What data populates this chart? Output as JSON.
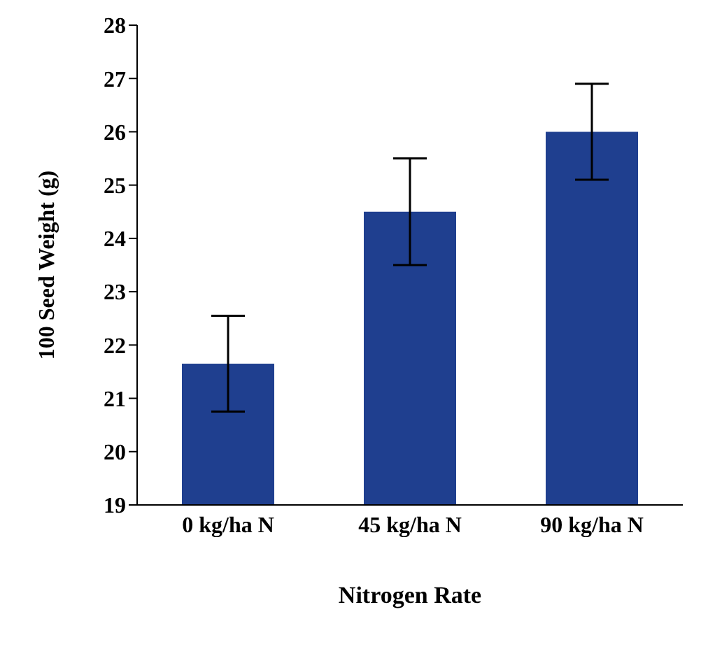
{
  "chart_data": {
    "type": "bar",
    "xlabel": "Nitrogen Rate",
    "ylabel": "100 Seed Weight (g)",
    "categories": [
      "0 kg/ha N",
      "45 kg/ha N",
      "90 kg/ha N"
    ],
    "values": [
      21.65,
      24.5,
      26.0
    ],
    "errors": [
      0.9,
      1.0,
      0.9
    ],
    "color": "#1f3f8f",
    "ylim": [
      19,
      28
    ],
    "yticks": [
      19,
      20,
      21,
      22,
      23,
      24,
      25,
      26,
      27,
      28
    ],
    "grid": false
  }
}
